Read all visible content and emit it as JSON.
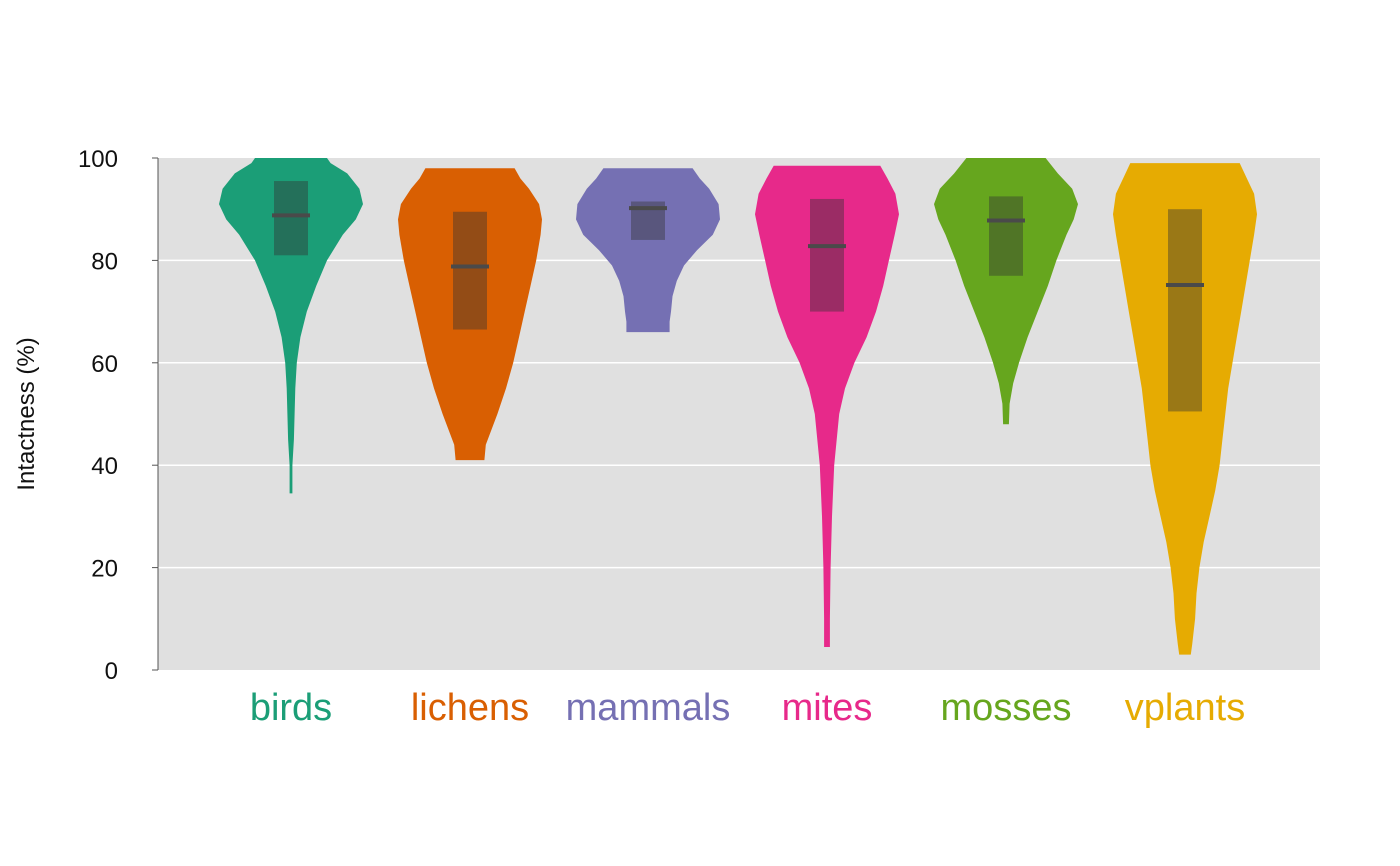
{
  "chart_data": {
    "type": "violin",
    "title": "",
    "xlabel": "",
    "ylabel": "Intactness (%)",
    "ylim": [
      0,
      100
    ],
    "yticks": [
      0,
      20,
      40,
      60,
      80,
      100
    ],
    "grid": true,
    "background": "#e0e0e0",
    "grid_color": "#ffffff",
    "median_color": "#4a4a4a",
    "series": [
      {
        "name": "birds",
        "color": "#1b9e77",
        "min": 34.5,
        "max": 100,
        "q1": 81,
        "q3": 95.5,
        "median": 88.8,
        "density": [
          [
            34.5,
            0.02
          ],
          [
            40,
            0.02
          ],
          [
            45,
            0.04
          ],
          [
            50,
            0.05
          ],
          [
            55,
            0.06
          ],
          [
            60,
            0.08
          ],
          [
            65,
            0.13
          ],
          [
            70,
            0.22
          ],
          [
            75,
            0.35
          ],
          [
            80,
            0.5
          ],
          [
            85,
            0.72
          ],
          [
            88,
            0.9
          ],
          [
            91,
            1.0
          ],
          [
            94,
            0.95
          ],
          [
            97,
            0.78
          ],
          [
            99,
            0.55
          ],
          [
            100,
            0.5
          ]
        ]
      },
      {
        "name": "lichens",
        "color": "#d95f02",
        "min": 41,
        "max": 98,
        "q1": 66.5,
        "q3": 89.5,
        "median": 78.8,
        "density": [
          [
            41,
            0.2
          ],
          [
            44,
            0.22
          ],
          [
            47,
            0.3
          ],
          [
            50,
            0.38
          ],
          [
            55,
            0.5
          ],
          [
            60,
            0.6
          ],
          [
            65,
            0.68
          ],
          [
            70,
            0.76
          ],
          [
            75,
            0.84
          ],
          [
            80,
            0.92
          ],
          [
            85,
            0.98
          ],
          [
            88,
            1.0
          ],
          [
            91,
            0.96
          ],
          [
            94,
            0.82
          ],
          [
            96,
            0.7
          ],
          [
            98,
            0.62
          ]
        ]
      },
      {
        "name": "mammals",
        "color": "#7570b3",
        "min": 66,
        "max": 98,
        "q1": 84,
        "q3": 91.5,
        "median": 90.2,
        "density": [
          [
            66,
            0.3
          ],
          [
            68,
            0.3
          ],
          [
            70,
            0.32
          ],
          [
            73,
            0.34
          ],
          [
            76,
            0.4
          ],
          [
            79,
            0.5
          ],
          [
            82,
            0.68
          ],
          [
            85,
            0.9
          ],
          [
            88,
            1.0
          ],
          [
            91,
            0.98
          ],
          [
            94,
            0.85
          ],
          [
            96,
            0.72
          ],
          [
            98,
            0.62
          ]
        ]
      },
      {
        "name": "mites",
        "color": "#e7298a",
        "min": 4.5,
        "max": 98.5,
        "q1": 70,
        "q3": 92,
        "median": 82.8,
        "density": [
          [
            4.5,
            0.04
          ],
          [
            10,
            0.04
          ],
          [
            20,
            0.05
          ],
          [
            30,
            0.07
          ],
          [
            40,
            0.1
          ],
          [
            50,
            0.17
          ],
          [
            55,
            0.25
          ],
          [
            60,
            0.38
          ],
          [
            65,
            0.55
          ],
          [
            70,
            0.68
          ],
          [
            75,
            0.78
          ],
          [
            80,
            0.86
          ],
          [
            85,
            0.94
          ],
          [
            89,
            1.0
          ],
          [
            93,
            0.95
          ],
          [
            96,
            0.84
          ],
          [
            98.5,
            0.74
          ]
        ]
      },
      {
        "name": "mosses",
        "color": "#66a61e",
        "min": 48,
        "max": 100,
        "q1": 77,
        "q3": 92.5,
        "median": 87.8,
        "density": [
          [
            48,
            0.04
          ],
          [
            52,
            0.05
          ],
          [
            56,
            0.1
          ],
          [
            60,
            0.18
          ],
          [
            65,
            0.3
          ],
          [
            70,
            0.44
          ],
          [
            75,
            0.58
          ],
          [
            80,
            0.7
          ],
          [
            85,
            0.84
          ],
          [
            88,
            0.94
          ],
          [
            91,
            1.0
          ],
          [
            94,
            0.92
          ],
          [
            97,
            0.72
          ],
          [
            100,
            0.55
          ]
        ]
      },
      {
        "name": "vplants",
        "color": "#e6ab02",
        "min": 3,
        "max": 99,
        "q1": 50.5,
        "q3": 90,
        "median": 75.2,
        "density": [
          [
            3,
            0.08
          ],
          [
            5,
            0.1
          ],
          [
            10,
            0.14
          ],
          [
            15,
            0.16
          ],
          [
            20,
            0.2
          ],
          [
            25,
            0.26
          ],
          [
            30,
            0.34
          ],
          [
            35,
            0.42
          ],
          [
            40,
            0.48
          ],
          [
            45,
            0.52
          ],
          [
            50,
            0.56
          ],
          [
            55,
            0.6
          ],
          [
            60,
            0.66
          ],
          [
            65,
            0.72
          ],
          [
            70,
            0.78
          ],
          [
            75,
            0.84
          ],
          [
            80,
            0.9
          ],
          [
            85,
            0.96
          ],
          [
            89,
            1.0
          ],
          [
            93,
            0.96
          ],
          [
            96,
            0.86
          ],
          [
            99,
            0.76
          ]
        ]
      }
    ]
  }
}
